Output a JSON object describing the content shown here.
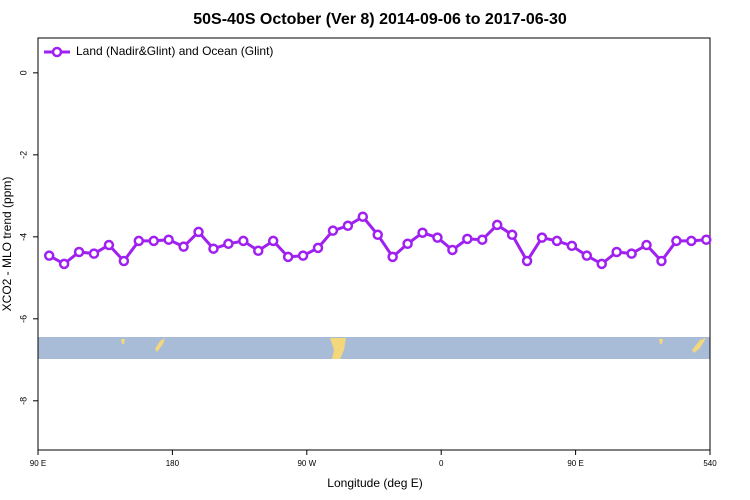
{
  "chart_data": {
    "type": "line",
    "title": "50S-40S October (Ver 8)   2014-09-06 to 2017-06-30",
    "x_label": "Longitude (deg E)",
    "y_label": "XCO2 - MLO trend (ppm)",
    "xlim": [
      90,
      540
    ],
    "ylim": [
      -9.2,
      0.85
    ],
    "xticks": [
      {
        "value": 90,
        "label": "90 E"
      },
      180,
      {
        "value": 270,
        "label": "90 W"
      },
      {
        "value": 360,
        "label": "0"
      },
      {
        "value": 450,
        "label": "90 E"
      },
      540
    ],
    "yticks": [
      0,
      -2,
      -4,
      -6,
      -8
    ],
    "legend": "top-left",
    "x": [
      97.5,
      107.5,
      117.5,
      127.5,
      137.5,
      147.5,
      157.5,
      167.5,
      177.5,
      187.5,
      197.5,
      207.5,
      217.5,
      227.5,
      237.5,
      247.5,
      257.5,
      267.5,
      277.5,
      287.5,
      297.5,
      307.5,
      317.5,
      327.5,
      337.5,
      347.5,
      357.5,
      367.5,
      377.5,
      387.5,
      397.5,
      407.5,
      417.5,
      427.5,
      437.5,
      447.5,
      457.5,
      467.5,
      477.5,
      487.5,
      497.5,
      507.5,
      517.5,
      527.5,
      537.5
    ],
    "series": [
      {
        "name": "Land (Nadir&Glint) and Ocean (Glint)",
        "color": "#a020f0",
        "values": [
          -4.46,
          -4.66,
          -4.37,
          -4.41,
          -4.2,
          -4.59,
          -4.1,
          -4.1,
          -4.07,
          -4.24,
          -3.88,
          -4.29,
          -4.17,
          -4.1,
          -4.34,
          -4.1,
          -4.49,
          -4.46,
          -4.27,
          -3.85,
          -3.73,
          -3.51,
          -3.95,
          -4.49,
          -4.17,
          -3.9,
          -4.02,
          -4.32,
          -4.05,
          -4.07,
          -3.71,
          -3.95,
          -4.59,
          -4.02,
          -4.1,
          -4.22,
          -4.46,
          -4.66,
          -4.37,
          -4.41,
          -4.2,
          -4.59,
          -4.1,
          -4.1,
          -4.07
        ]
      }
    ]
  }
}
